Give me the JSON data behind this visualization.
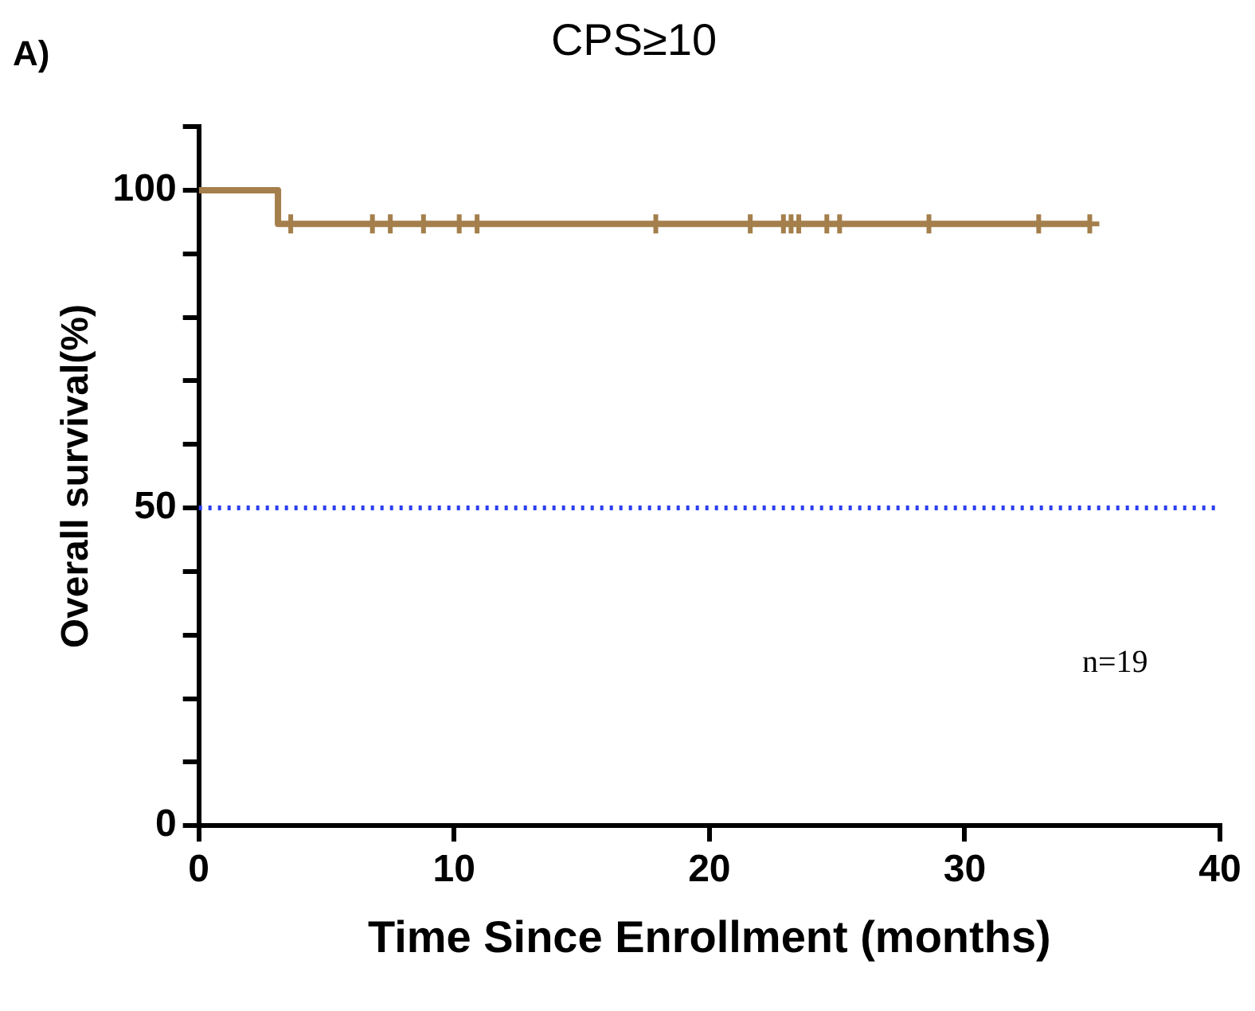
{
  "chart_data": {
    "type": "step",
    "title": "CPS≥10",
    "xlabel": "Time Since Enrollment (months)",
    "ylabel": "Overall survival(%)",
    "xlim": [
      0,
      40
    ],
    "xticks": [
      0,
      10,
      20,
      30,
      40
    ],
    "ylim": [
      0,
      110
    ],
    "yticks": [
      0,
      {
        "value": 10,
        "label": null
      },
      {
        "value": 20,
        "label": null
      },
      {
        "value": 30,
        "label": null
      },
      {
        "value": 40,
        "label": null
      },
      50,
      {
        "value": 60,
        "label": null
      },
      {
        "value": 70,
        "label": null
      },
      {
        "value": 80,
        "label": null
      },
      {
        "value": 90,
        "label": null
      },
      100,
      {
        "value": 110,
        "label": null
      }
    ],
    "grid": false,
    "legend": false,
    "series": [
      {
        "type": "step",
        "color": "#a47f4c",
        "marker": "none",
        "x": [
          0,
          3.1,
          34.9
        ],
        "values": [
          100,
          94.7,
          94.7
        ]
      },
      {
        "type": "scatter",
        "color": "#a47f4c",
        "marker": "cross",
        "x": [
          3.6,
          6.8,
          7.5,
          8.8,
          10.2,
          10.9,
          17.9,
          21.6,
          22.9,
          23.2,
          23.5,
          24.6,
          25.1,
          28.6,
          32.9,
          34.9
        ],
        "values": [
          94.7,
          94.7,
          94.7,
          94.7,
          94.7,
          94.7,
          94.7,
          94.7,
          94.7,
          94.7,
          94.7,
          94.7,
          94.7,
          94.7,
          94.7,
          94.7
        ]
      }
    ],
    "ref_lines": [
      {
        "axis": "y",
        "value": 50,
        "color": "#2b3ff0",
        "line_style": "dotted"
      }
    ],
    "annotations": [
      "A)",
      "n=19"
    ]
  }
}
